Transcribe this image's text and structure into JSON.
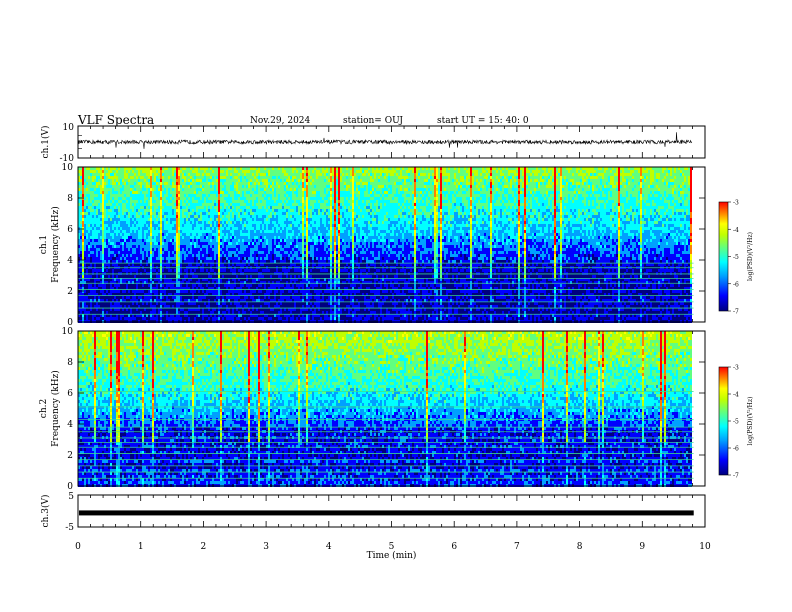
{
  "header": {
    "title": "VLF Spectra",
    "date": "Nov.29, 2024",
    "station": "station= OUJ",
    "start": "start  UT =   15: 40: 0"
  },
  "chart_data": [
    {
      "type": "line",
      "panel": "waveform-ch1",
      "ylabel": "ch.1(V)",
      "ylim": [
        -10,
        10
      ],
      "yticks": [
        "10",
        "-10"
      ],
      "x": [
        0,
        10
      ],
      "description": "dense noisy trace near 0 V with spikes",
      "series": [
        {
          "name": "",
          "level": 0,
          "noise": 1.2
        }
      ]
    },
    {
      "type": "heatmap",
      "panel": "spectrogram-ch1",
      "ylabel": "ch.1\nFrequency (kHz)",
      "ylim": [
        0,
        10
      ],
      "yticks": [
        "0",
        "2",
        "4",
        "6",
        "8",
        "10"
      ],
      "xlim": [
        0,
        9.82
      ],
      "colorbar": {
        "label": "log(PSD)(V²/Hz)",
        "range": [
          -7,
          -3
        ],
        "ticks": [
          "-3",
          "-4",
          "-5",
          "-6",
          "-7"
        ]
      },
      "band_lines_khz": [
        0.5,
        0.9,
        1.3,
        1.7,
        2.1,
        2.5,
        2.8,
        3.1,
        3.5,
        3.8
      ]
    },
    {
      "type": "heatmap",
      "panel": "spectrogram-ch2",
      "ylabel": "ch.2\nFrequency (kHz)",
      "ylim": [
        0,
        10
      ],
      "yticks": [
        "0",
        "2",
        "4",
        "6",
        "8",
        "10"
      ],
      "xlim": [
        0,
        9.82
      ],
      "colorbar": {
        "label": "log(PSD)(V²/Hz)",
        "range": [
          -7,
          -3
        ],
        "ticks": [
          "-3",
          "-4",
          "-5",
          "-6",
          "-7"
        ]
      },
      "band_lines_khz": [
        0.5,
        0.9,
        1.3,
        1.7,
        2.1,
        2.5,
        2.8,
        3.1,
        3.5,
        3.8,
        4.3,
        5.1,
        6.1
      ]
    },
    {
      "type": "line",
      "panel": "waveform-ch3",
      "ylabel": "ch.3(V)",
      "ylim": [
        -5,
        5
      ],
      "yticks": [
        "5",
        "-5"
      ],
      "x": [
        0,
        9.82
      ],
      "series": [
        {
          "name": "",
          "level": -0.6
        }
      ]
    }
  ],
  "xaxis": {
    "label": "Time  (min)",
    "range": [
      0,
      10
    ],
    "ticks": [
      "0",
      "1",
      "2",
      "3",
      "4",
      "5",
      "6",
      "7",
      "8",
      "9",
      "10"
    ]
  },
  "colors": {
    "frame": "#000000",
    "colormap": [
      "#00007f",
      "#0000ff",
      "#00a0ff",
      "#00ffff",
      "#60ff80",
      "#c0ff00",
      "#ffff00",
      "#ff8000",
      "#ff0000"
    ]
  }
}
